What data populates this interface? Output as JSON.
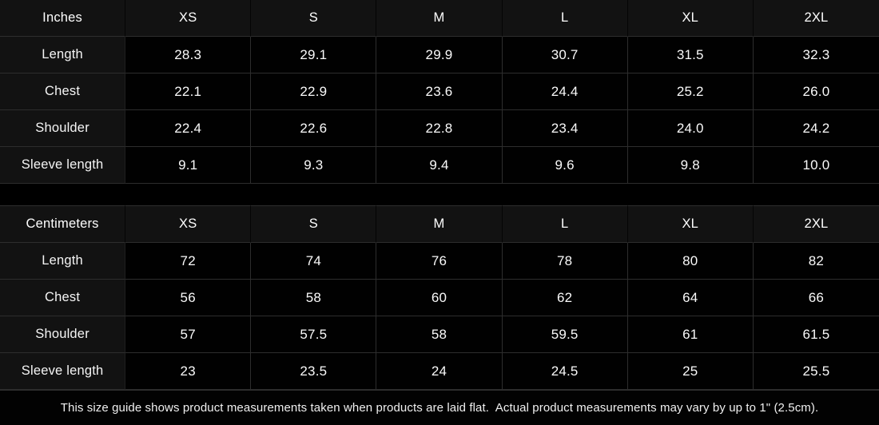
{
  "colors": {
    "page_background": "#000000",
    "header_cell_background": "#121212",
    "label_cell_background": "#121212",
    "value_cell_background": "#010101",
    "grid_line": "#2d2d2d",
    "text": "#f2f2f2"
  },
  "tables": [
    {
      "unit_label": "Inches",
      "columns": [
        "XS",
        "S",
        "M",
        "L",
        "XL",
        "2XL"
      ],
      "rows": [
        {
          "label": "Length",
          "values": [
            "28.3",
            "29.1",
            "29.9",
            "30.7",
            "31.5",
            "32.3"
          ]
        },
        {
          "label": "Chest",
          "values": [
            "22.1",
            "22.9",
            "23.6",
            "24.4",
            "25.2",
            "26.0"
          ]
        },
        {
          "label": "Shoulder",
          "values": [
            "22.4",
            "22.6",
            "22.8",
            "23.4",
            "24.0",
            "24.2"
          ]
        },
        {
          "label": "Sleeve length",
          "values": [
            "9.1",
            "9.3",
            "9.4",
            "9.6",
            "9.8",
            "10.0"
          ]
        }
      ]
    },
    {
      "unit_label": "Centimeters",
      "columns": [
        "XS",
        "S",
        "M",
        "L",
        "XL",
        "2XL"
      ],
      "rows": [
        {
          "label": "Length",
          "values": [
            "72",
            "74",
            "76",
            "78",
            "80",
            "82"
          ]
        },
        {
          "label": "Chest",
          "values": [
            "56",
            "58",
            "60",
            "62",
            "64",
            "66"
          ]
        },
        {
          "label": "Shoulder",
          "values": [
            "57",
            "57.5",
            "58",
            "59.5",
            "61",
            "61.5"
          ]
        },
        {
          "label": "Sleeve length",
          "values": [
            "23",
            "23.5",
            "24",
            "24.5",
            "25",
            "25.5"
          ]
        }
      ]
    }
  ],
  "footer": {
    "note": "This size guide shows product measurements taken when products are laid flat.  Actual product measurements may vary by up to 1\" (2.5cm)."
  }
}
